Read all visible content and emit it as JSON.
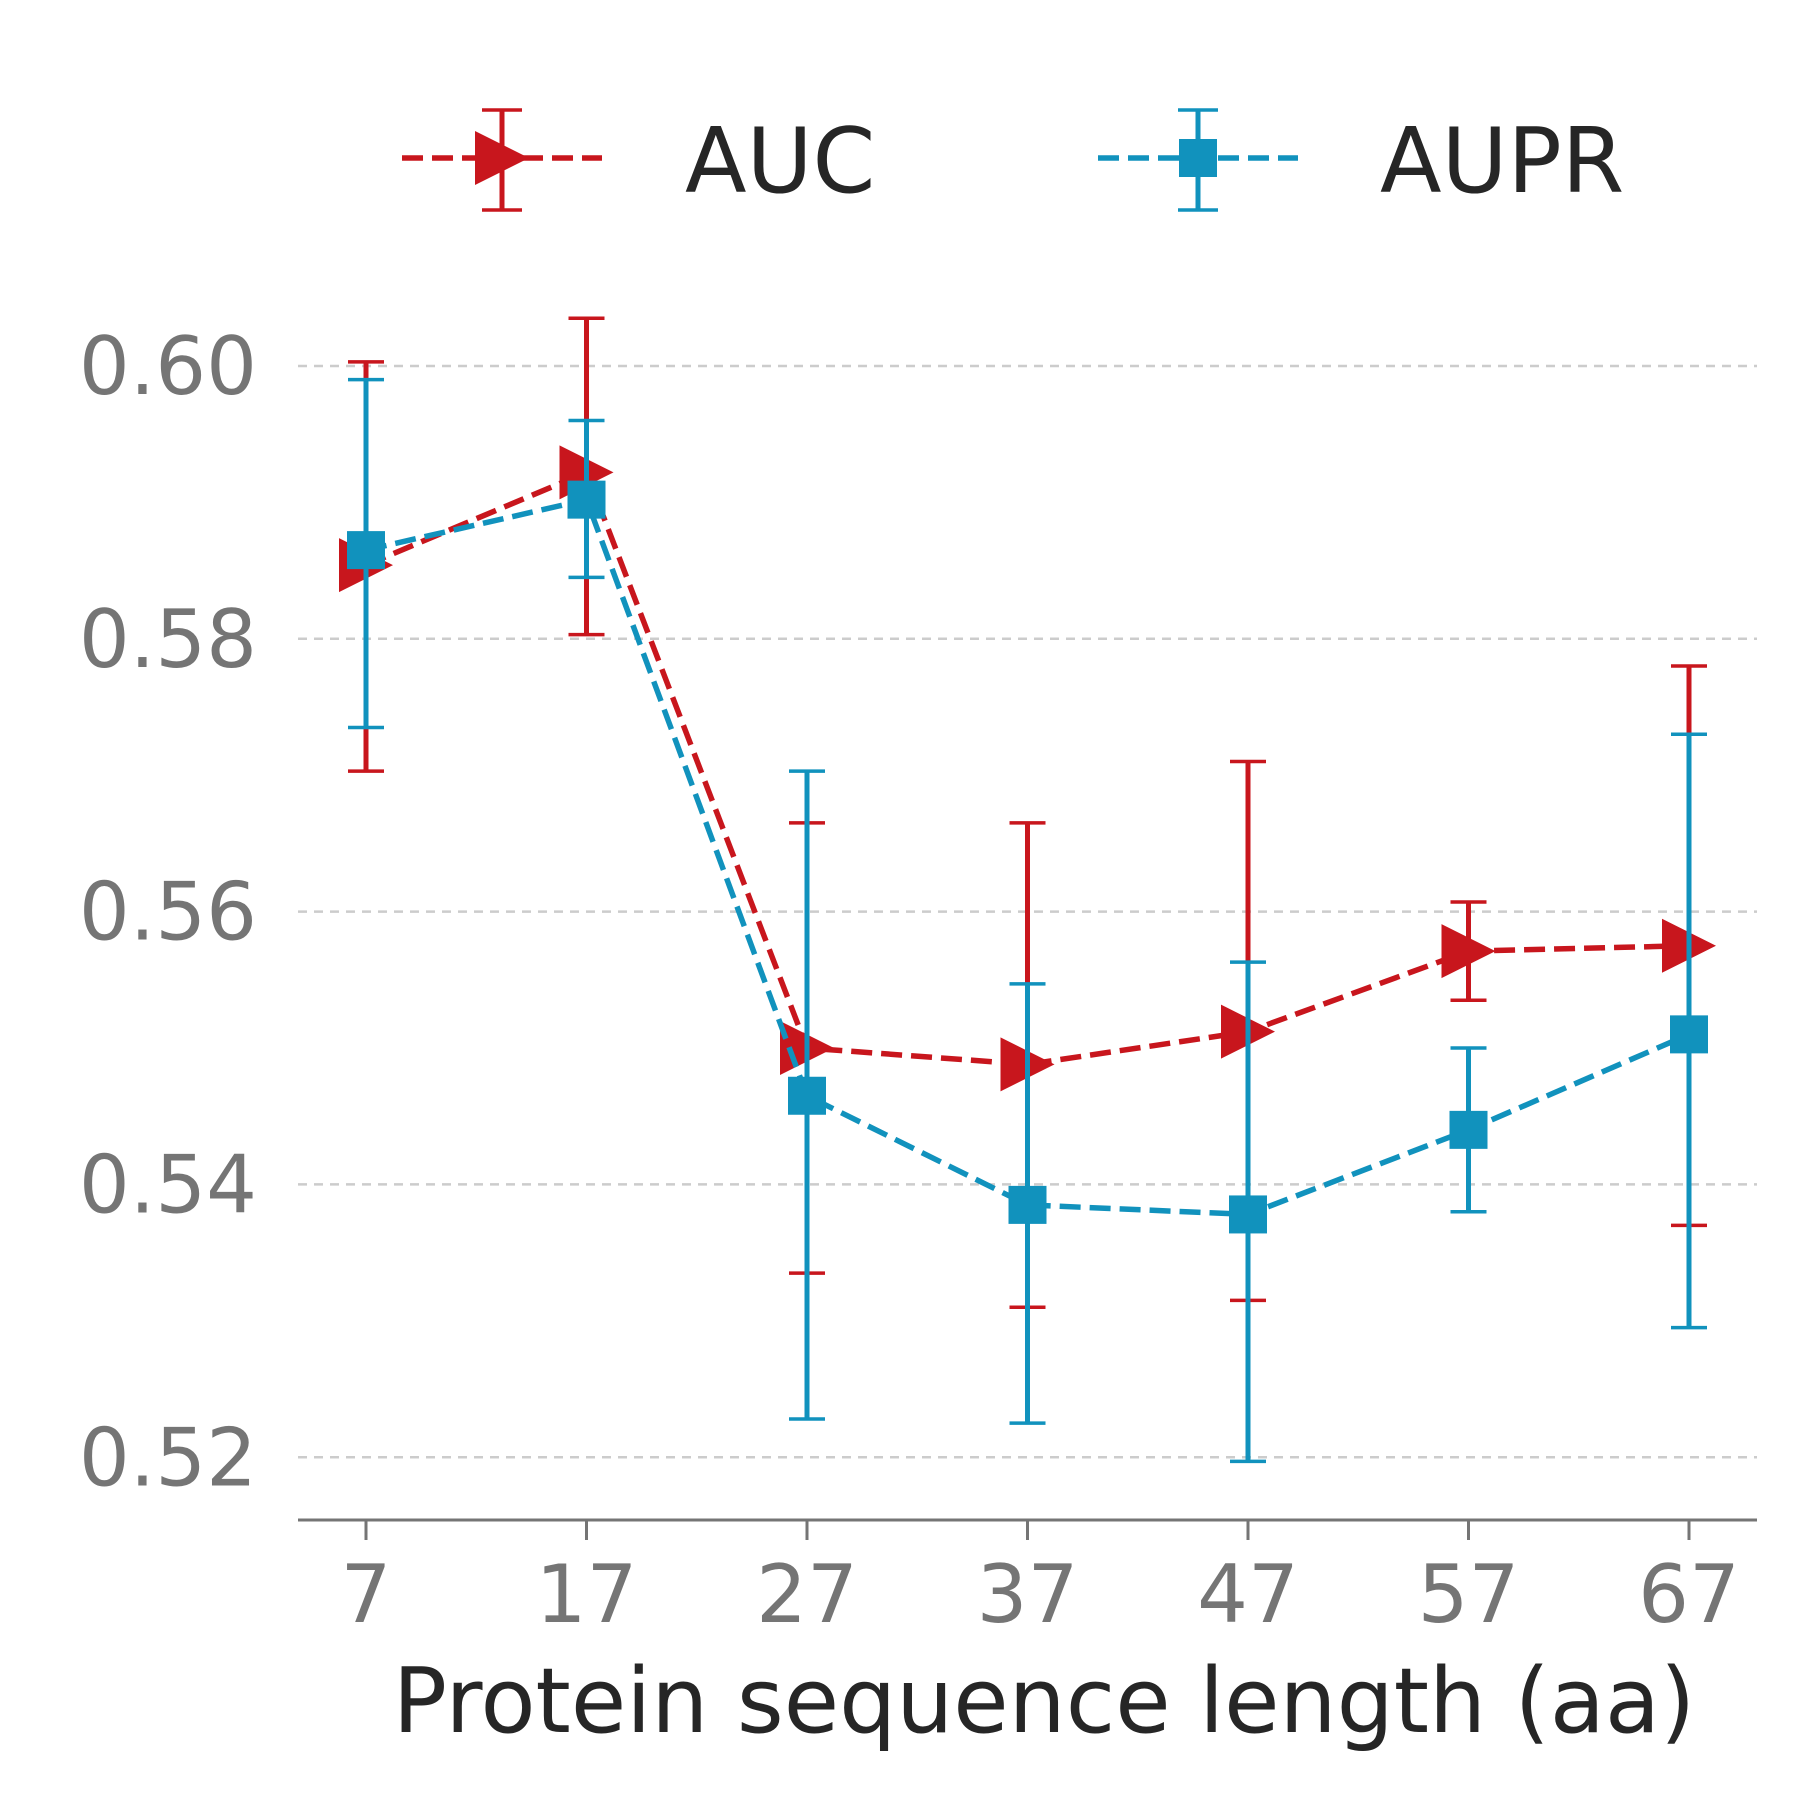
{
  "chart_data": {
    "type": "line",
    "title": "",
    "xlabel": "Protein sequence length (aa)",
    "ylabel": "",
    "categories": [
      "7",
      "17",
      "27",
      "37",
      "47",
      "57",
      "67"
    ],
    "ylim": [
      0.5154,
      0.6085
    ],
    "yticks": [
      "0.52",
      "0.54",
      "0.56",
      "0.58",
      "0.60"
    ],
    "grid": "horizontal dashed",
    "legend": "top, horizontal",
    "series": [
      {
        "name": "AUC",
        "color": "#c8161d",
        "marker": "triangle-right",
        "linestyle": "dashed",
        "values": [
          0.5854,
          0.5922,
          0.55,
          0.5488,
          0.5512,
          0.5571,
          0.5575
        ],
        "error_low": [
          0.5703,
          0.5803,
          0.5335,
          0.531,
          0.5315,
          0.5535,
          0.537
        ],
        "error_high": [
          0.6003,
          0.6035,
          0.5665,
          0.5665,
          0.571,
          0.5607,
          0.578
        ]
      },
      {
        "name": "AUPR",
        "color": "#1192bd",
        "marker": "square",
        "linestyle": "dashed",
        "values": [
          0.5865,
          0.5902,
          0.5465,
          0.5385,
          0.5378,
          0.544,
          0.551
        ],
        "error_low": [
          0.5735,
          0.5845,
          0.5228,
          0.5225,
          0.5197,
          0.538,
          0.5295
        ],
        "error_high": [
          0.599,
          0.596,
          0.5703,
          0.5547,
          0.5563,
          0.55,
          0.573
        ]
      }
    ]
  }
}
